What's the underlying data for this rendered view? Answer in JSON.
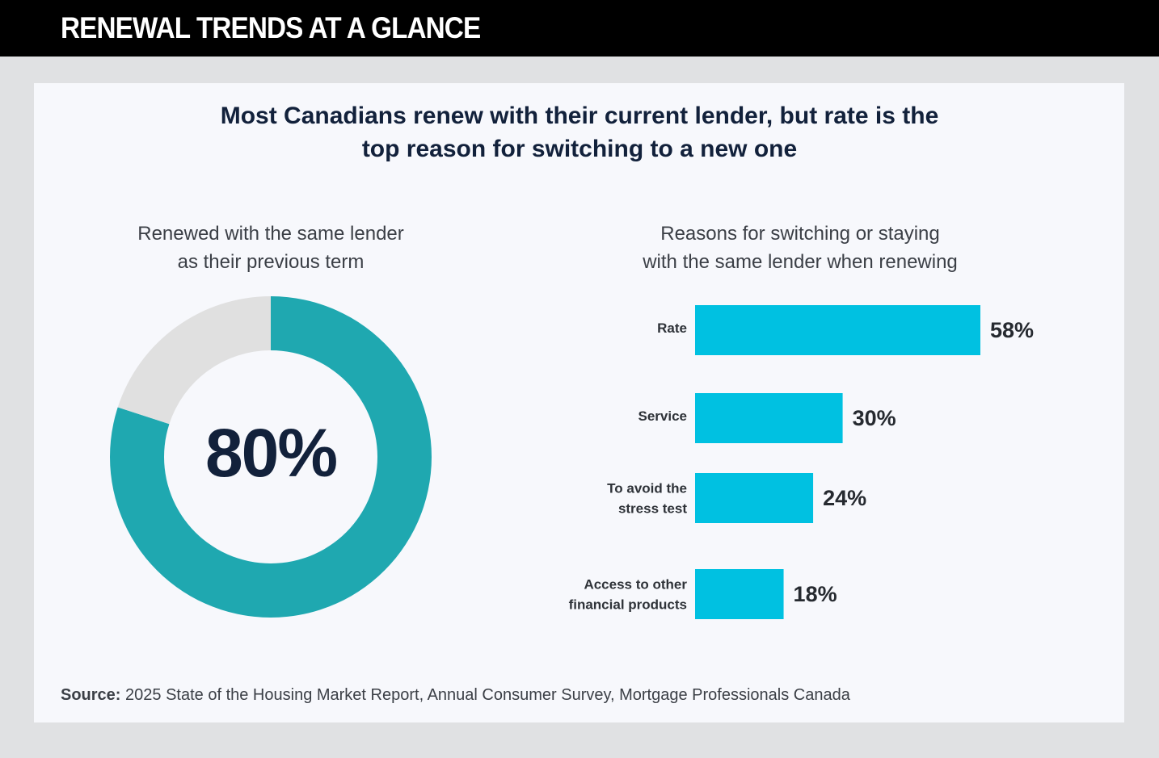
{
  "header": {
    "title": "RENEWAL TRENDS AT A GLANCE"
  },
  "headline": {
    "line1": "Most Canadians renew with their current lender, but rate is the",
    "line2": "top reason for switching to a new one"
  },
  "colors": {
    "donut_fill": "#1fa8b0",
    "donut_track": "#e0e0e0",
    "bar_fill": "#00c1e1",
    "navy": "#12213b"
  },
  "chart_data": [
    {
      "type": "pie",
      "title_line1": "Renewed with the same lender",
      "title_line2": "as their previous term",
      "center_label": "80%",
      "slices": [
        {
          "label": "Renewed with the same lender",
          "value": 80
        },
        {
          "label": "",
          "value": 20
        }
      ]
    },
    {
      "type": "bar",
      "orientation": "horizontal",
      "title_line1": "Reasons for switching or staying",
      "title_line2": "with the same lender when renewing",
      "categories": [
        [
          "Rate"
        ],
        [
          "Service"
        ],
        [
          "To avoid the",
          "stress test"
        ],
        [
          "Access to other",
          "financial products"
        ]
      ],
      "values": [
        58,
        30,
        24,
        18
      ],
      "value_labels": [
        "58%",
        "30%",
        "24%",
        "18%"
      ],
      "unit": "%"
    }
  ],
  "source": {
    "label": "Source:",
    "text": "2025 State of the Housing Market Report, Annual Consumer Survey, Mortgage Professionals Canada"
  }
}
